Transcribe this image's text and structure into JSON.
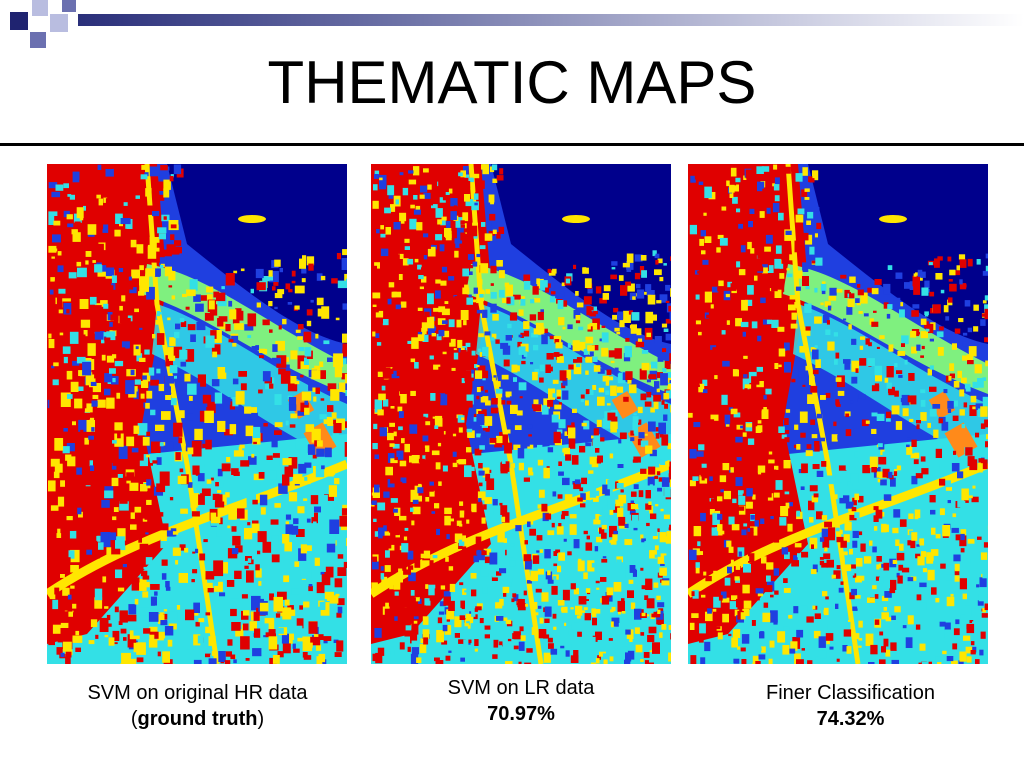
{
  "slide": {
    "title": "THEMATIC MAPS"
  },
  "maps": [
    {
      "caption_line1": "SVM on original HR data",
      "caption_open": "(",
      "caption_bold": "ground truth",
      "caption_close": ")"
    },
    {
      "caption_line1": "SVM on LR data",
      "caption_bold": "70.97%"
    },
    {
      "caption_line1": "Finer Classification",
      "caption_bold": "74.32%"
    }
  ],
  "colors": {
    "deco_dark": "#1f2370",
    "deco_mid": "#6b70b0",
    "deco_light": "#b9bde0",
    "class_red": "#e00000",
    "class_yellow": "#ffe600",
    "class_cyan": "#33e0e6",
    "class_blue": "#1f3fe0",
    "class_navy": "#00008c",
    "class_green": "#7ff07f",
    "class_orange": "#ff8a1a"
  }
}
